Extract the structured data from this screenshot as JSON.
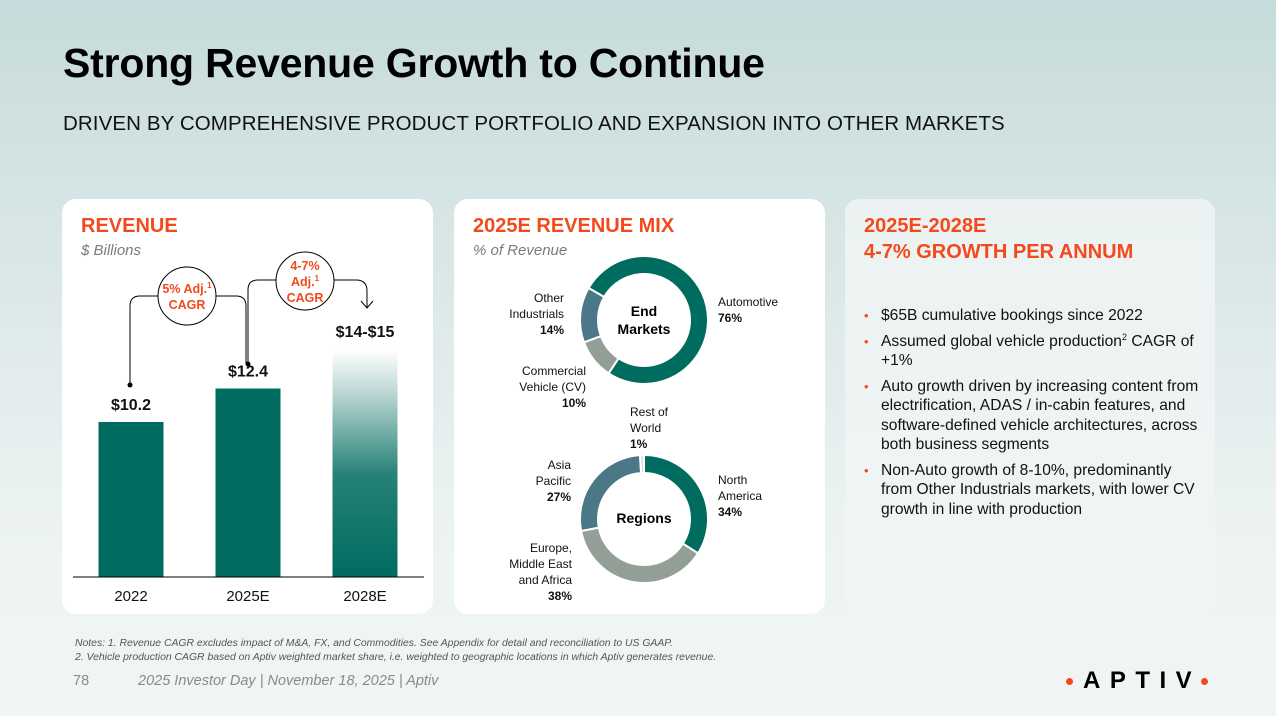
{
  "header": {
    "title": "Strong Revenue Growth to Continue",
    "subtitle": "DRIVEN BY COMPREHENSIVE PRODUCT PORTFOLIO AND EXPANSION INTO OTHER MARKETS"
  },
  "colors": {
    "accent": "#f24a1c",
    "teal": "#006b5f",
    "slate": "#4b7886",
    "gray": "#939e97",
    "light": "#d5e0e0"
  },
  "revenue_card": {
    "title": "REVENUE",
    "subtitle": "$ Billions",
    "cagr1": {
      "line1": "5% Adj.",
      "sup": "1",
      "line2": "CAGR"
    },
    "cagr2": {
      "line1": "4-7%",
      "line2": "Adj.",
      "sup": "1",
      "line3": "CAGR"
    }
  },
  "mix_card": {
    "title": "2025E REVENUE MIX",
    "subtitle": "% of Revenue",
    "end_markets_center": [
      "End",
      "Markets"
    ],
    "regions_center": "Regions"
  },
  "growth_card": {
    "title_line1": "2025E-2028E",
    "title_line2": "4-7% GROWTH PER ANNUM",
    "bullets": [
      {
        "text": "$65B cumulative bookings since 2022"
      },
      {
        "pre": "Assumed global vehicle production",
        "sup": "2",
        "post": " CAGR of +1%"
      },
      {
        "text": "Auto growth driven by increasing content from electrification, ADAS / in-cabin features, and software-defined vehicle architectures, across both business segments"
      },
      {
        "text": "Non-Auto growth of 8-10%, predominantly from Other Industrials markets, with lower CV growth in line with production"
      }
    ]
  },
  "notes": {
    "line1": "Notes: 1. Revenue CAGR excludes impact of M&A, FX, and Commodities. See Appendix for detail and reconciliation to US GAAP.",
    "line2": "2. Vehicle production CAGR based on Aptiv weighted market share, i.e. weighted to geographic locations in which Aptiv generates revenue."
  },
  "footer": {
    "page_number": "78",
    "text": "2025 Investor Day | November 18, 2025 | Aptiv",
    "logo": "APTIV"
  },
  "chart_data": [
    {
      "type": "bar",
      "title": "REVENUE",
      "ylabel": "$ Billions",
      "categories": [
        "2022",
        "2025E",
        "2028E"
      ],
      "values": [
        10.2,
        12.4,
        15
      ],
      "range_low": [
        null,
        null,
        14
      ],
      "labels": [
        "$10.2",
        "$12.4",
        "$14-$15"
      ],
      "ylim": [
        0,
        15
      ],
      "annotations": [
        "5% Adj. CAGR (2022-2025E)",
        "4-7% Adj. CAGR (2025E-2028E)"
      ]
    },
    {
      "type": "pie",
      "title": "End Markets",
      "slices": [
        {
          "label": "Automotive",
          "value": 76,
          "pct_label": "76%",
          "color": "#006b5f"
        },
        {
          "label": "Commercial Vehicle (CV)",
          "value": 10,
          "pct_label": "10%",
          "color": "#939e97"
        },
        {
          "label": "Other Industrials",
          "value": 14,
          "pct_label": "14%",
          "color": "#4b7886"
        }
      ]
    },
    {
      "type": "pie",
      "title": "Regions",
      "slices": [
        {
          "label": "North America",
          "value": 34,
          "pct_label": "34%",
          "color": "#006b5f"
        },
        {
          "label": "Europe, Middle East and Africa",
          "value": 38,
          "pct_label": "38%",
          "color": "#939e97"
        },
        {
          "label": "Asia Pacific",
          "value": 27,
          "pct_label": "27%",
          "color": "#4b7886"
        },
        {
          "label": "Rest of World",
          "value": 1,
          "pct_label": "1%",
          "color": "#d5e0e0"
        }
      ]
    }
  ]
}
